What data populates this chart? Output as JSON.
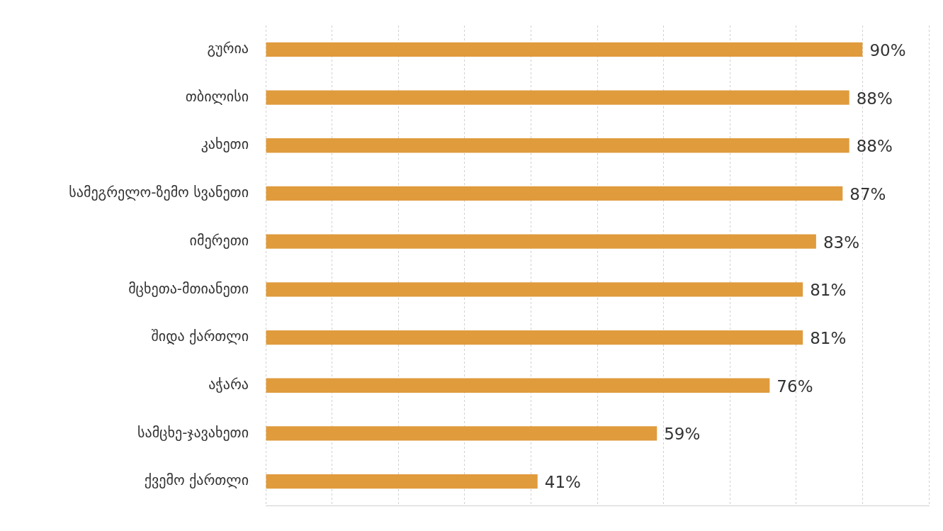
{
  "chart_data": {
    "type": "bar",
    "orientation": "horizontal",
    "categories": [
      "გურია",
      "თბილისი",
      "კახეთი",
      "სამეგრელო-ზემო სვანეთი",
      "იმერეთი",
      "მცხეთა-მთიანეთი",
      "შიდა ქართლი",
      "აჭარა",
      "სამცხე-ჯავახეთი",
      "ქვემო ქართლი"
    ],
    "values": [
      90,
      88,
      88,
      87,
      83,
      81,
      81,
      76,
      59,
      41
    ],
    "value_labels": [
      "90%",
      "88%",
      "88%",
      "87%",
      "83%",
      "81%",
      "81%",
      "76%",
      "59%",
      "41%"
    ],
    "color": "#e09b3d",
    "xlim": [
      0,
      100
    ],
    "xticks": [
      {
        "value": 0,
        "label": null
      },
      {
        "value": 10,
        "label": null
      },
      {
        "value": 20,
        "label": null
      },
      {
        "value": 30,
        "label": null
      },
      {
        "value": 40,
        "label": null
      },
      {
        "value": 50,
        "label": null
      },
      {
        "value": 60,
        "label": null
      },
      {
        "value": 70,
        "label": null
      },
      {
        "value": 80,
        "label": null
      },
      {
        "value": 90,
        "label": null
      },
      {
        "value": 100,
        "label": null
      }
    ],
    "grid": "x",
    "tick_labels": "y"
  }
}
